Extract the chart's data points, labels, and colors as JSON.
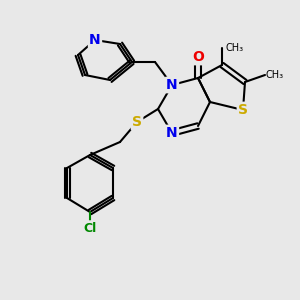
{
  "bg_color": "#e8e8e8",
  "bond_color": "#000000",
  "atom_colors": {
    "N": "#0000ee",
    "O": "#ee0000",
    "S": "#ccaa00",
    "Cl": "#008800",
    "C": "#000000"
  },
  "lw": 1.5,
  "font_size": 9,
  "bold_font_size": 9
}
